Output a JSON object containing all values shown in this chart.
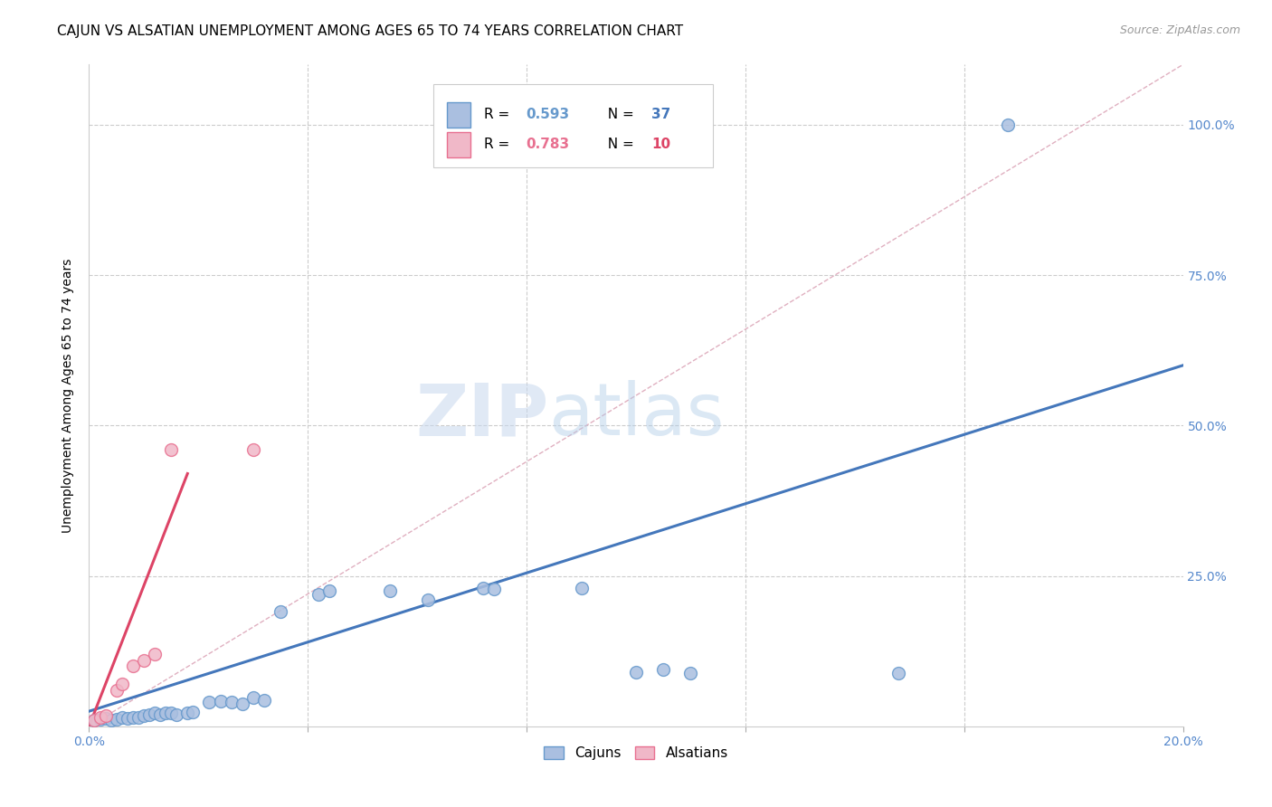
{
  "title": "CAJUN VS ALSATIAN UNEMPLOYMENT AMONG AGES 65 TO 74 YEARS CORRELATION CHART",
  "source": "Source: ZipAtlas.com",
  "ylabel": "Unemployment Among Ages 65 to 74 years",
  "xlim": [
    0.0,
    0.2
  ],
  "ylim": [
    0.0,
    1.1
  ],
  "legend_blue_r": "0.593",
  "legend_blue_n": "37",
  "legend_pink_r": "0.783",
  "legend_pink_n": "10",
  "blue_scatter_x": [
    0.001,
    0.002,
    0.003,
    0.004,
    0.005,
    0.006,
    0.007,
    0.008,
    0.009,
    0.01,
    0.011,
    0.012,
    0.013,
    0.014,
    0.015,
    0.016,
    0.018,
    0.019,
    0.022,
    0.024,
    0.026,
    0.028,
    0.03,
    0.032,
    0.035,
    0.042,
    0.044,
    0.055,
    0.062,
    0.072,
    0.074,
    0.09,
    0.1,
    0.105,
    0.11,
    0.148,
    0.168
  ],
  "blue_scatter_y": [
    0.01,
    0.012,
    0.013,
    0.01,
    0.012,
    0.014,
    0.013,
    0.015,
    0.014,
    0.018,
    0.02,
    0.022,
    0.02,
    0.022,
    0.023,
    0.02,
    0.022,
    0.024,
    0.04,
    0.042,
    0.04,
    0.038,
    0.048,
    0.044,
    0.19,
    0.22,
    0.225,
    0.225,
    0.21,
    0.23,
    0.228,
    0.23,
    0.09,
    0.095,
    0.088,
    0.088,
    1.0
  ],
  "pink_scatter_x": [
    0.001,
    0.002,
    0.003,
    0.005,
    0.006,
    0.008,
    0.01,
    0.012,
    0.015,
    0.03
  ],
  "pink_scatter_y": [
    0.01,
    0.015,
    0.018,
    0.06,
    0.07,
    0.1,
    0.11,
    0.12,
    0.46,
    0.46
  ],
  "blue_line_x": [
    0.0,
    0.2
  ],
  "blue_line_y": [
    0.025,
    0.6
  ],
  "pink_line_x": [
    0.0,
    0.018
  ],
  "pink_line_y": [
    0.0,
    0.42
  ],
  "diag_line_x": [
    0.0,
    0.2
  ],
  "diag_line_y": [
    0.0,
    1.1
  ],
  "watermark_zip": "ZIP",
  "watermark_atlas": "atlas",
  "background_color": "#ffffff",
  "blue_fill_color": "#aabfe0",
  "blue_edge_color": "#6699cc",
  "pink_fill_color": "#f0b8c8",
  "pink_edge_color": "#e87090",
  "blue_line_color": "#4477bb",
  "pink_line_color": "#dd4466",
  "diag_line_color": "#cccccc",
  "grid_color": "#cccccc",
  "right_tick_color": "#5588cc",
  "bottom_tick_color": "#5588cc",
  "title_fontsize": 11,
  "axis_label_fontsize": 10,
  "tick_fontsize": 10
}
